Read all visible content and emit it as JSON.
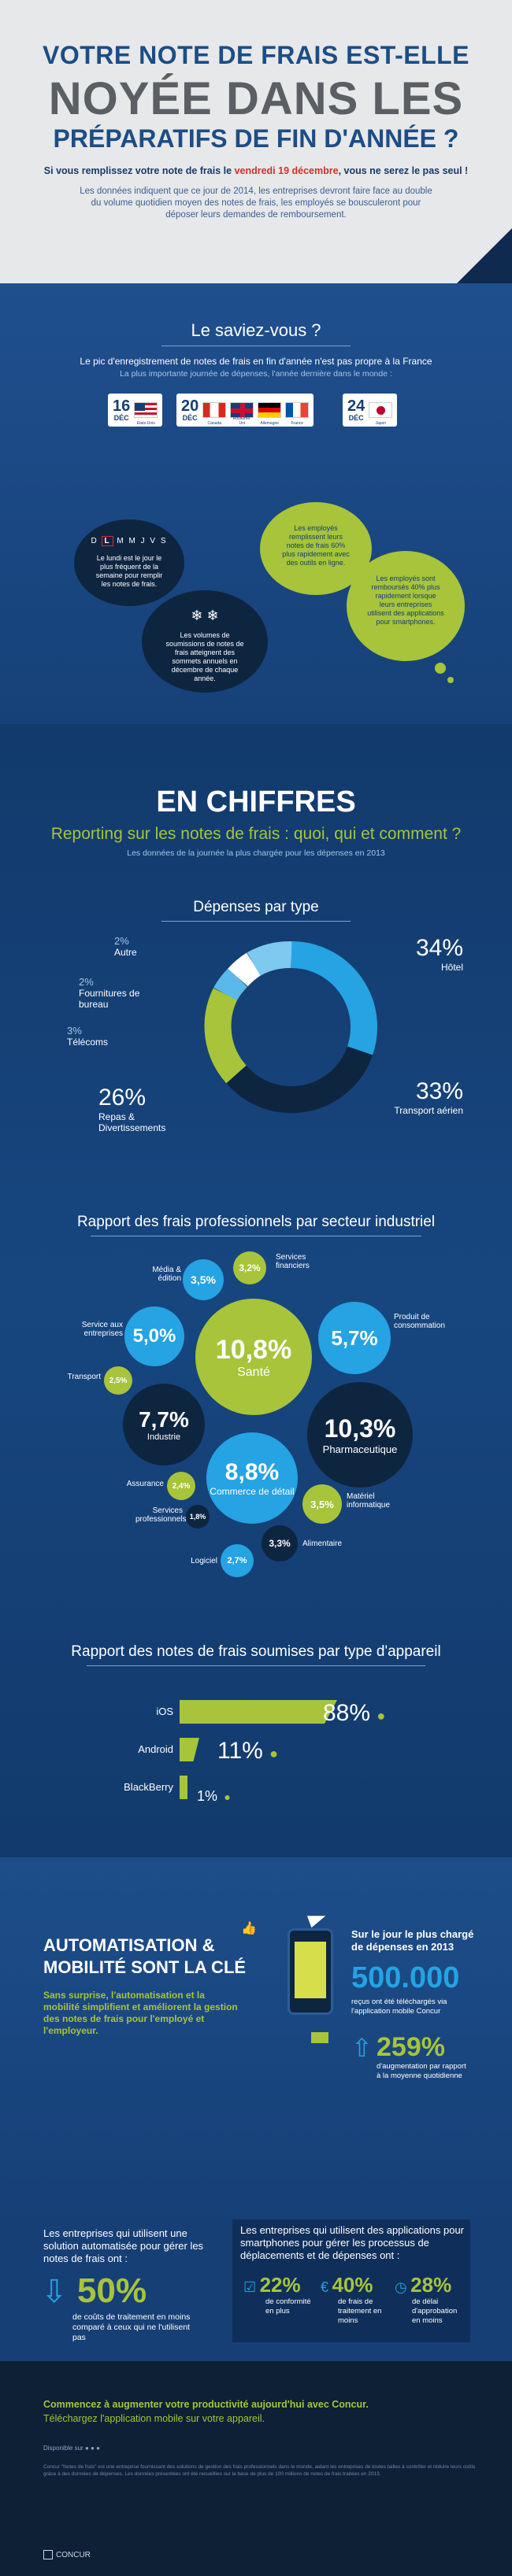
{
  "header": {
    "title_line1": "VOTRE NOTE DE FRAIS EST-ELLE",
    "title_line2": "NOYÉE DANS LES",
    "title_line3": "PRÉPARATIFS DE FIN D'ANNÉE ?",
    "lead_before": "Si vous remplissez votre note de frais le ",
    "lead_date": "vendredi 19 décembre",
    "lead_after": ", vous ne serez le pas seul !",
    "description": "Les données indiquent que ce jour de 2014, les entreprises devront faire face au double du volume quotidien moyen des notes de frais, les employés se bousculeront pour déposer leurs demandes de remboursement."
  },
  "saviez_vous": {
    "title": "Le saviez-vous ?",
    "line1": "Le pic d'enregistrement de notes de frais en fin d'année n'est pas propre à la France",
    "line2": "La plus importante journée de dépenses, l'année dernière dans le monde :",
    "dates": [
      {
        "day": "16",
        "month": "DÉC",
        "countries": [
          "Etats-Unis"
        ]
      },
      {
        "day": "20",
        "month": "DÉC",
        "countries": [
          "Canada",
          "Royaume-Uni",
          "Allemagne",
          "France"
        ]
      },
      {
        "day": "24",
        "month": "DÉC",
        "countries": [
          "Japon"
        ]
      }
    ],
    "weekdays": [
      "D",
      "L",
      "M",
      "M",
      "J",
      "V",
      "S"
    ],
    "bubble_week": "Le lundi est le jour le plus fréquent de la semaine pour remplir les notes de frais.",
    "bubble_annual": "Les volumes de soumissions de notes de frais atteignent des sommets annuels en décembre de chaque année.",
    "bubble_60": "Les employés remplissent leurs notes de frais 60% plus rapidement avec des outils en ligne.",
    "bubble_40": "Les employés sont remboursés 40% plus rapidement lorsque leurs entreprises utilisent des applications pour smartphones."
  },
  "chiffres": {
    "title": "EN CHIFFRES",
    "subtitle": "Reporting sur les notes de frais : quoi, qui et comment ?",
    "note": "Les données de la journée la plus chargée pour les dépenses en 2013"
  },
  "depenses": {
    "title": "Dépenses par type",
    "items": [
      {
        "label": "Autre",
        "pct": "2%"
      },
      {
        "label": "Fournitures de bureau",
        "pct": "2%"
      },
      {
        "label": "Télécoms",
        "pct": "3%"
      },
      {
        "label": "Repas & Divertissements",
        "pct": "26%"
      },
      {
        "label": "Hôtel",
        "pct": "34%"
      },
      {
        "label": "Transport aérien",
        "pct": "33%"
      }
    ]
  },
  "secteurs": {
    "title": "Rapport des frais professionnels par secteur industriel",
    "items": [
      {
        "label": "Média & édition",
        "value": "3,5%"
      },
      {
        "label": "Services financiers",
        "value": "3,2%"
      },
      {
        "label": "Service aux entreprises",
        "value": "5,0%"
      },
      {
        "label": "Transport",
        "value": "2,5%"
      },
      {
        "label": "Santé",
        "value": "10,8%"
      },
      {
        "label": "Produit de consommation",
        "value": "5,7%"
      },
      {
        "label": "Industrie",
        "value": "7,7%"
      },
      {
        "label": "Pharmaceutique",
        "value": "10,3%"
      },
      {
        "label": "Assurance",
        "value": "2,4%"
      },
      {
        "label": "Services professionnels",
        "value": "1,8%"
      },
      {
        "label": "Commerce de détail",
        "value": "8,8%"
      },
      {
        "label": "Matériel informatique",
        "value": "3,5%"
      },
      {
        "label": "Alimentaire",
        "value": "3,3%"
      },
      {
        "label": "Logiciel",
        "value": "2,7%"
      }
    ]
  },
  "appareils": {
    "title": "Rapport des notes de frais soumises par type d'appareil",
    "items": [
      {
        "label": "iOS",
        "value": "88%",
        "fraction": 0.88
      },
      {
        "label": "Android",
        "value": "11%",
        "fraction": 0.11
      },
      {
        "label": "BlackBerry",
        "value": "1%",
        "fraction": 0.01
      }
    ]
  },
  "automatisation": {
    "title_line1": "AUTOMATISATION &",
    "title_line2": "MOBILITÉ SONT LA CLÉ",
    "text": "Sans surprise, l'automatisation et la mobilité simplifient et améliorent la gestion des notes de frais pour l'employé et l'employeur.",
    "right_title": "Sur le jour le plus chargé de dépenses en 2013",
    "big_number": "500.000",
    "big_number_text": "reçus ont été téléchargés via l'application mobile Concur",
    "pct": "259%",
    "pct_text": "d'augmentation par rapport à la moyenne quotidienne"
  },
  "stats": {
    "left_title": "Les entreprises qui utilisent une solution automatisée pour gérer les notes de frais ont :",
    "left_pct": "50%",
    "left_text": "de coûts de traitement en moins comparé à ceux qui ne l'utilisent pas",
    "box_title": "Les entreprises qui utilisent des applications pour smartphones pour gérer les processus de déplacements et de dépenses ont :",
    "items": [
      {
        "value": "22%",
        "text": "de conformité en plus"
      },
      {
        "value": "40%",
        "text": "de frais de traitement en moins"
      },
      {
        "value": "28%",
        "text": "de délai d'approbation en moins"
      }
    ]
  },
  "footer": {
    "line1": "Commencez à augmenter votre productivité aujourd'hui avec Concur.",
    "line2": "Téléchargez l'application mobile sur votre appareil.",
    "available": "Disponible sur",
    "fineprint": "Concur \"Notes de frais\" est une entreprise fournissant des solutions de gestion des frais professionnels dans le monde, aidant les entreprises de toutes tailles à contrôler et réduire leurs coûts grâce à des données de dépenses. Les données présentées ont été recueillies sur la base de plus de 100 millions de notes de frais traitées en 2013.",
    "brand": "CONCUR"
  },
  "colors": {
    "navy": "#0e2540",
    "blue": "#1f4f8e",
    "sky": "#25a3e3",
    "lime": "#a7c43a",
    "red": "#d0312d"
  }
}
